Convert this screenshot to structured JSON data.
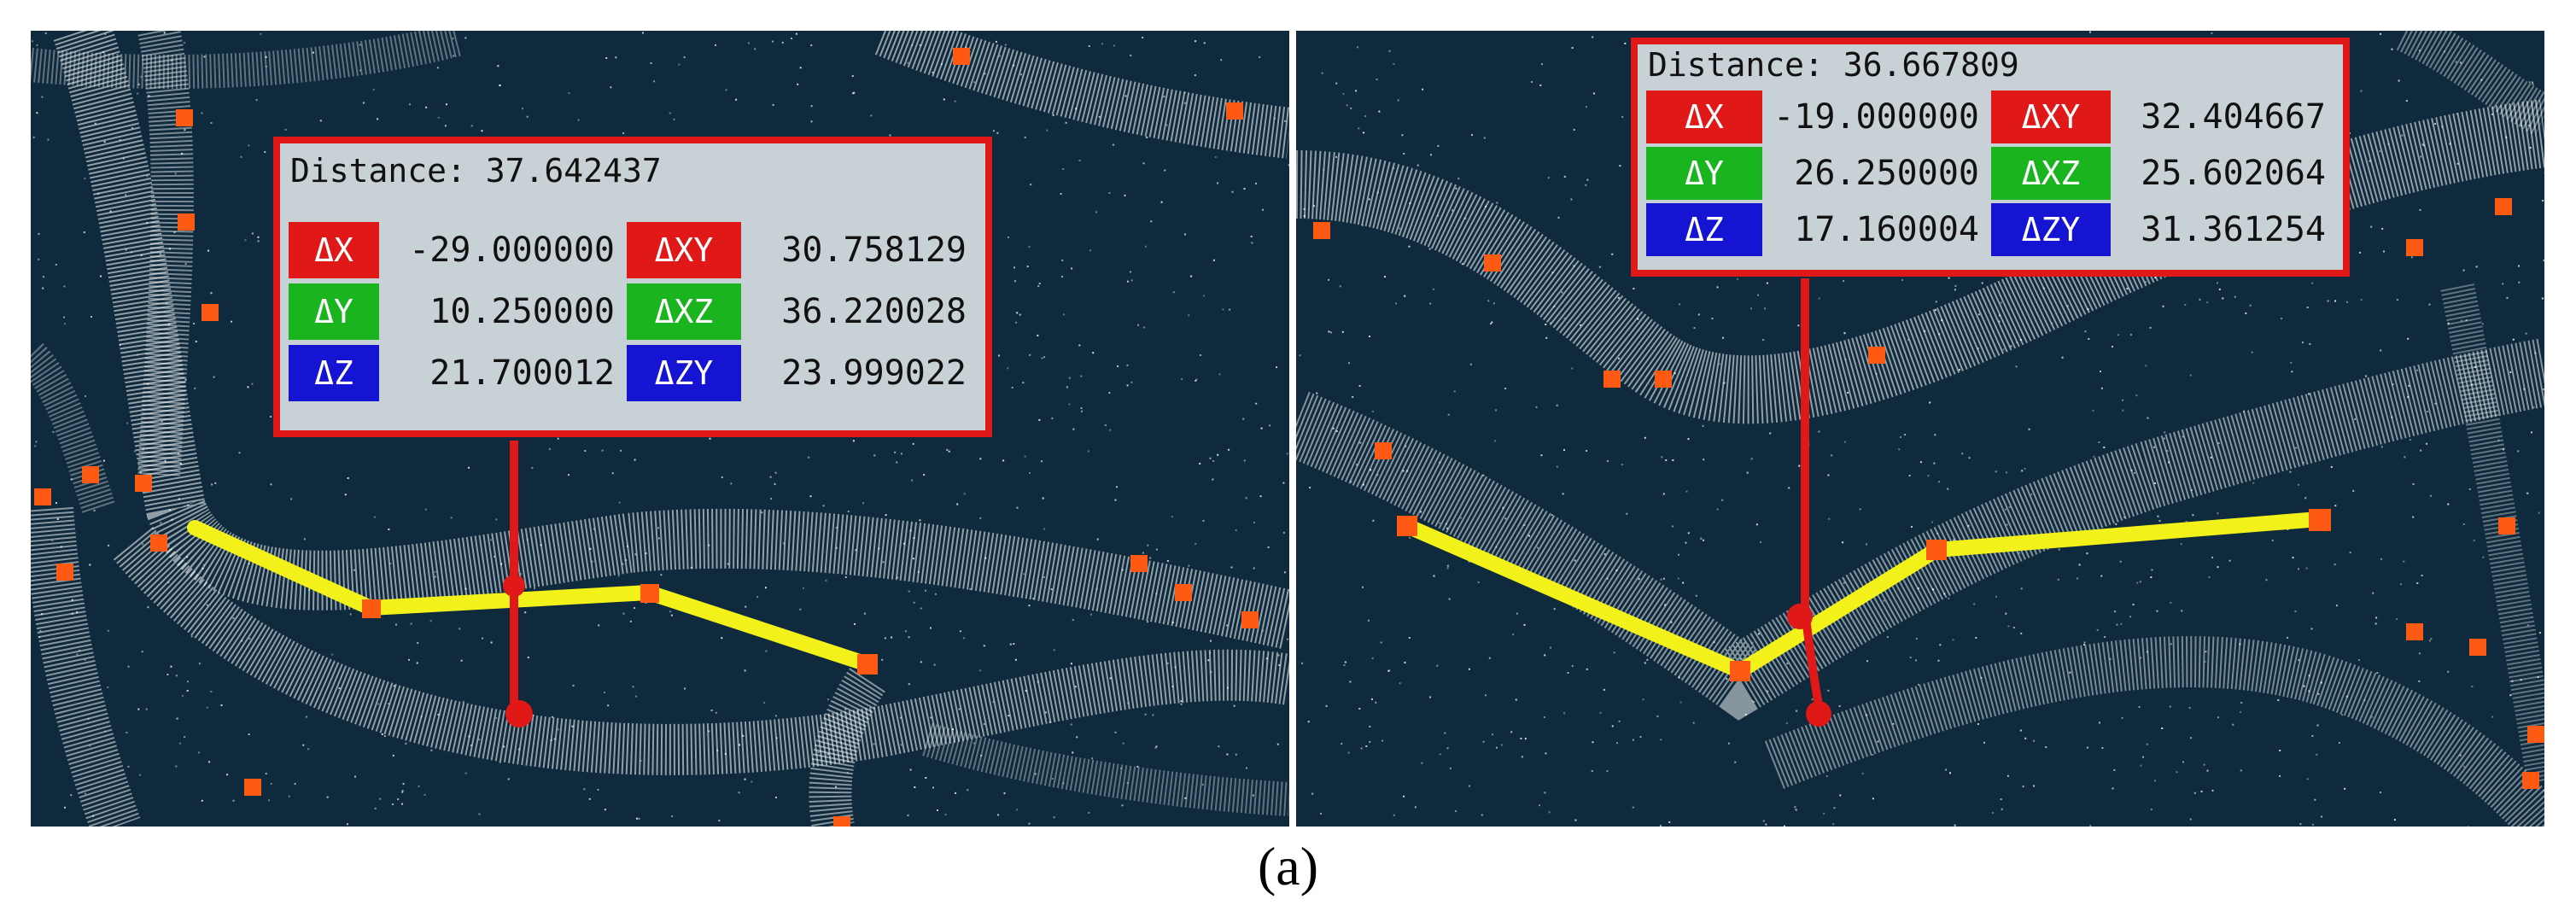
{
  "colors": {
    "background": "#0e2a3c",
    "point_cloud": "#ffffff",
    "marker": "#ff5a14",
    "path": "#f2f21a",
    "leader": "#e01818",
    "label_bg": "#c8d2d6",
    "dx": "#e01818",
    "dy": "#19b41e",
    "dz": "#1414d2"
  },
  "panels": [
    {
      "distance_label": "Distance:",
      "distance_value": "37.642437",
      "rows": [
        {
          "left_label": "ΔX",
          "left_value": "-29.000000",
          "right_label": "ΔXY",
          "right_value": "30.758129"
        },
        {
          "left_label": "ΔY",
          "left_value": "10.250000",
          "right_label": "ΔXZ",
          "right_value": "36.220028"
        },
        {
          "left_label": "ΔZ",
          "left_value": "21.700012",
          "right_label": "ΔZY",
          "right_value": "23.999022"
        }
      ]
    },
    {
      "distance_label": "Distance:",
      "distance_value": "36.667809",
      "rows": [
        {
          "left_label": "ΔX",
          "left_value": "-19.000000",
          "right_label": "ΔXY",
          "right_value": "32.404667"
        },
        {
          "left_label": "ΔY",
          "left_value": "26.250000",
          "right_label": "ΔXZ",
          "right_value": "25.602064"
        },
        {
          "left_label": "ΔZ",
          "left_value": "17.160004",
          "right_label": "ΔZY",
          "right_value": "31.361254"
        }
      ]
    }
  ],
  "caption": "(a)"
}
